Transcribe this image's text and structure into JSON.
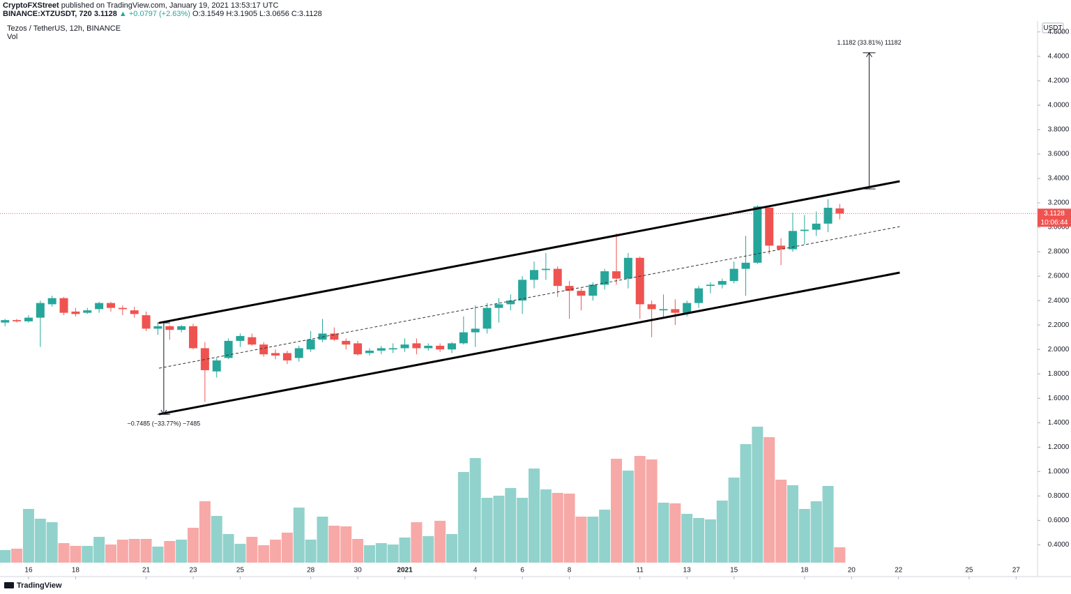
{
  "header": {
    "publisher": "CryptoFXStreet",
    "published": "published on TradingView.com, January 19, 2021 13:53:17 UTC",
    "symbol": "BINANCE:XTZUSDT, 720",
    "price": "3.1128",
    "change": "▲ +0.0797 (+2.63%)",
    "ohlc": "O:3.1549 H:3.1905 L:3.0656 C:3.1128",
    "legend": "Tezos / TetherUS, 12h, BINANCE",
    "vol": "Vol",
    "currency": "USDT",
    "brand": "TradingView",
    "countdown": "10:06:44"
  },
  "chart_data": {
    "type": "candlestick",
    "up_color": "#26a69a",
    "down_color": "#ef5350",
    "vol_up_color": "#92d2cc",
    "vol_down_color": "#f7a9a7",
    "open": [
      2.22,
      2.24,
      2.23,
      2.26,
      2.37,
      2.42,
      2.31,
      2.3,
      2.33,
      2.38,
      2.34,
      2.32,
      2.28,
      2.17,
      2.19,
      2.16,
      2.19,
      2.01,
      1.82,
      1.93,
      2.07,
      2.1,
      2.04,
      1.97,
      1.97,
      1.93,
      2.0,
      2.08,
      2.13,
      2.07,
      2.05,
      1.97,
      1.99,
      2.0,
      2.01,
      2.05,
      2.01,
      2.03,
      2.0,
      2.05,
      2.14,
      2.17,
      2.34,
      2.37,
      2.4,
      2.57,
      2.65,
      2.66,
      2.52,
      2.48,
      2.44,
      2.53,
      2.64,
      2.58,
      2.75,
      2.37,
      2.32,
      2.33,
      2.3,
      2.38,
      2.52,
      2.53,
      2.56,
      2.66,
      2.71,
      3.16,
      2.85,
      2.82,
      2.97,
      2.98,
      3.03,
      3.1549
    ],
    "high": [
      2.25,
      2.25,
      2.28,
      2.4,
      2.44,
      2.43,
      2.34,
      2.34,
      2.39,
      2.39,
      2.36,
      2.35,
      2.31,
      2.22,
      2.2,
      2.2,
      2.21,
      2.06,
      1.93,
      2.09,
      2.13,
      2.13,
      2.06,
      2.0,
      1.99,
      2.03,
      2.15,
      2.25,
      2.18,
      2.09,
      2.07,
      2.01,
      2.03,
      2.05,
      2.09,
      2.09,
      2.05,
      2.05,
      2.06,
      2.27,
      2.36,
      2.38,
      2.42,
      2.45,
      2.6,
      2.72,
      2.79,
      2.68,
      2.56,
      2.5,
      2.55,
      2.66,
      2.95,
      2.79,
      2.76,
      2.4,
      2.45,
      2.41,
      2.4,
      2.52,
      2.55,
      2.58,
      2.72,
      2.93,
      3.18,
      3.18,
      2.91,
      3.12,
      3.1,
      3.13,
      3.23,
      3.1905
    ],
    "low": [
      2.19,
      2.22,
      2.22,
      2.02,
      2.35,
      2.28,
      2.27,
      2.29,
      2.3,
      2.31,
      2.28,
      2.26,
      2.15,
      2.12,
      2.08,
      2.14,
      2.0,
      1.57,
      1.77,
      1.92,
      2.02,
      2.03,
      1.94,
      1.92,
      1.88,
      1.9,
      1.98,
      2.06,
      2.07,
      2.0,
      1.95,
      1.95,
      1.96,
      1.97,
      1.98,
      1.96,
      1.99,
      1.98,
      1.97,
      2.04,
      2.02,
      2.13,
      2.22,
      2.32,
      2.29,
      2.5,
      2.57,
      2.43,
      2.25,
      2.32,
      2.4,
      2.49,
      2.53,
      2.5,
      2.25,
      2.1,
      2.25,
      2.2,
      2.27,
      2.34,
      2.46,
      2.5,
      2.54,
      2.44,
      2.7,
      2.78,
      2.69,
      2.8,
      2.86,
      2.93,
      2.96,
      3.0656
    ],
    "close": [
      2.24,
      2.23,
      2.26,
      2.38,
      2.42,
      2.3,
      2.29,
      2.32,
      2.38,
      2.34,
      2.33,
      2.29,
      2.17,
      2.19,
      2.16,
      2.19,
      2.01,
      1.83,
      1.91,
      2.07,
      2.11,
      2.04,
      1.96,
      1.95,
      1.91,
      2.01,
      2.08,
      2.13,
      2.08,
      2.04,
      1.96,
      1.99,
      2.01,
      2.01,
      2.04,
      2.01,
      2.03,
      2.0,
      2.05,
      2.14,
      2.17,
      2.34,
      2.37,
      2.4,
      2.57,
      2.65,
      2.66,
      2.52,
      2.48,
      2.44,
      2.53,
      2.64,
      2.58,
      2.75,
      2.37,
      2.33,
      2.33,
      2.3,
      2.38,
      2.5,
      2.53,
      2.56,
      2.66,
      2.71,
      3.17,
      2.85,
      2.82,
      2.97,
      2.98,
      3.03,
      3.16,
      3.1128
    ],
    "volume": [
      72,
      80,
      308,
      252,
      232,
      112,
      96,
      96,
      148,
      104,
      132,
      136,
      136,
      92,
      124,
      132,
      200,
      352,
      268,
      164,
      108,
      148,
      100,
      132,
      172,
      316,
      132,
      264,
      212,
      208,
      136,
      100,
      112,
      104,
      144,
      232,
      152,
      240,
      164,
      520,
      600,
      372,
      384,
      428,
      372,
      540,
      420,
      400,
      396,
      264,
      264,
      304,
      596,
      528,
      612,
      592,
      344,
      340,
      280,
      256,
      248,
      356,
      488,
      680,
      780,
      720,
      476,
      444,
      308,
      352,
      440,
      88
    ],
    "vol_ylim": [
      0,
      1000
    ],
    "xlim": [
      -0.43,
      87.82
    ],
    "ylim": [
      0.14,
      4.69
    ],
    "yticks": [
      {
        "value": 0.4,
        "label": "0.4000"
      },
      {
        "value": 0.6,
        "label": "0.6000"
      },
      {
        "value": 0.8,
        "label": "0.8000"
      },
      {
        "value": 1.0,
        "label": "1.0000"
      },
      {
        "value": 1.2,
        "label": "1.2000"
      },
      {
        "value": 1.4,
        "label": "1.4000"
      },
      {
        "value": 1.6,
        "label": "1.6000"
      },
      {
        "value": 1.8,
        "label": "1.8000"
      },
      {
        "value": 2.0,
        "label": "2.0000"
      },
      {
        "value": 2.2,
        "label": "2.2000"
      },
      {
        "value": 2.4,
        "label": "2.4000"
      },
      {
        "value": 2.6,
        "label": "2.6000"
      },
      {
        "value": 2.8,
        "label": "2.8000"
      },
      {
        "value": 3.0,
        "label": "3.0000"
      },
      {
        "value": 3.2,
        "label": "3.2000"
      },
      {
        "value": 3.4,
        "label": "3.4000"
      },
      {
        "value": 3.6,
        "label": "3.6000"
      },
      {
        "value": 3.8,
        "label": "3.8000"
      },
      {
        "value": 4.0,
        "label": "4.0000"
      },
      {
        "value": 4.2,
        "label": "4.2000"
      },
      {
        "value": 4.4,
        "label": "4.4000"
      },
      {
        "value": 4.6,
        "label": "4.6000"
      }
    ],
    "xticks": [
      {
        "value": 2,
        "label": "16"
      },
      {
        "value": 6,
        "label": "18"
      },
      {
        "value": 12,
        "label": "21"
      },
      {
        "value": 16,
        "label": "23"
      },
      {
        "value": 20,
        "label": "25"
      },
      {
        "value": 26,
        "label": "28"
      },
      {
        "value": 30,
        "label": "30"
      },
      {
        "value": 34,
        "label": "2021"
      },
      {
        "value": 40,
        "label": "4"
      },
      {
        "value": 44,
        "label": "6"
      },
      {
        "value": 48,
        "label": "8"
      },
      {
        "value": 54,
        "label": "11"
      },
      {
        "value": 58,
        "label": "13"
      },
      {
        "value": 62,
        "label": "15"
      },
      {
        "value": 68,
        "label": "18"
      },
      {
        "value": 72,
        "label": "20"
      },
      {
        "value": 76,
        "label": "22"
      },
      {
        "value": 82,
        "label": "25"
      },
      {
        "value": 86,
        "label": "27"
      }
    ],
    "last_price": 3.1128,
    "channel": [
      {
        "x": [
          13.09,
          76.1
        ],
        "y": [
          2.217,
          3.377
        ],
        "dashed": false
      },
      {
        "x": [
          13.09,
          76.1
        ],
        "y": [
          1.846,
          3.006
        ],
        "dashed": true
      },
      {
        "x": [
          13.09,
          76.1
        ],
        "y": [
          1.469,
          2.629
        ],
        "dashed": false
      }
    ],
    "measures": [
      {
        "x": 13.5,
        "y": [
          2.217,
          1.469
        ],
        "label": "−0.7485 (−33.77%) −7485"
      },
      {
        "x": 73.5,
        "y": [
          3.314,
          4.429
        ],
        "label": "1.1182 (33.81%) 11182"
      }
    ]
  }
}
